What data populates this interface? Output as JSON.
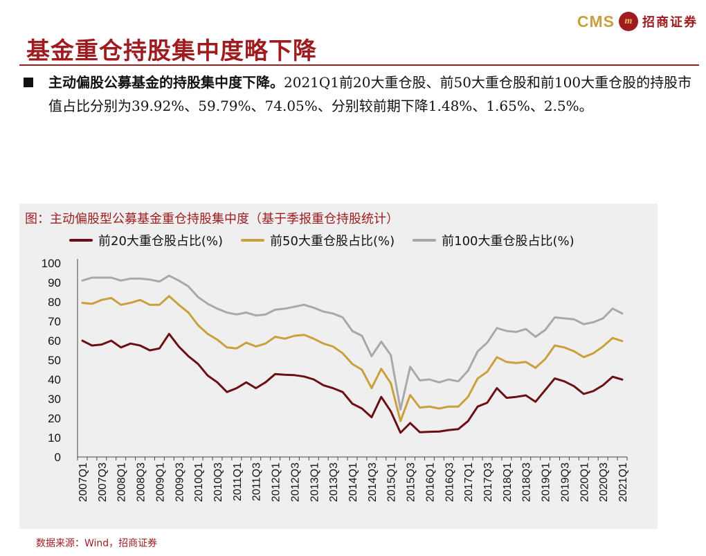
{
  "brand": {
    "cms": "CMS",
    "mark": "m",
    "name_cn": "招商证券"
  },
  "title": "基金重仓持股集中度略下降",
  "bullet": {
    "lead": "主动偏股公募基金的持股集中度下降。",
    "body": "2021Q1前20大重仓股、前50大重仓股和前100大重仓股的持股市值占比分别为39.92%、59.79%、74.05%、分别较前期下降1.48%、1.65%、2.5%。"
  },
  "figure_caption": "图：主动偏股型公募基金重仓持股集中度（基于季报重仓持股统计）",
  "source": "数据来源：Wind，招商证券",
  "colors": {
    "brand_red": "#9e1b1f",
    "gold": "#c9a040",
    "top20": "#6b0f14",
    "top50": "#c9a03c",
    "top100": "#a8a8a8"
  },
  "chart_data": {
    "type": "line",
    "title": "",
    "xlabel": "",
    "ylabel": "",
    "ylim": [
      0,
      100
    ],
    "yticks": [
      0,
      10,
      20,
      30,
      40,
      50,
      60,
      70,
      80,
      90,
      100
    ],
    "x": [
      "2007Q1",
      "2007Q2",
      "2007Q3",
      "2007Q4",
      "2008Q1",
      "2008Q2",
      "2008Q3",
      "2008Q4",
      "2009Q1",
      "2009Q2",
      "2009Q3",
      "2009Q4",
      "2010Q1",
      "2010Q2",
      "2010Q3",
      "2010Q4",
      "2011Q1",
      "2011Q2",
      "2011Q3",
      "2011Q4",
      "2012Q1",
      "2012Q2",
      "2012Q3",
      "2012Q4",
      "2013Q1",
      "2013Q2",
      "2013Q3",
      "2013Q4",
      "2014Q1",
      "2014Q2",
      "2014Q3",
      "2014Q4",
      "2015Q1",
      "2015Q2",
      "2015Q3",
      "2015Q4",
      "2016Q1",
      "2016Q2",
      "2016Q3",
      "2016Q4",
      "2017Q1",
      "2017Q2",
      "2017Q3",
      "2017Q4",
      "2018Q1",
      "2018Q2",
      "2018Q3",
      "2018Q4",
      "2019Q1",
      "2019Q2",
      "2019Q3",
      "2019Q4",
      "2020Q1",
      "2020Q2",
      "2020Q3",
      "2020Q4",
      "2021Q1"
    ],
    "x_tick_labels": [
      "2007Q1",
      "2007Q3",
      "2008Q1",
      "2008Q3",
      "2009Q1",
      "2009Q3",
      "2010Q1",
      "2010Q3",
      "2011Q1",
      "2011Q3",
      "2012Q1",
      "2012Q3",
      "2013Q1",
      "2013Q3",
      "2014Q1",
      "2014Q3",
      "2015Q1",
      "2015Q3",
      "2016Q1",
      "2016Q3",
      "2017Q1",
      "2017Q3",
      "2018Q1",
      "2018Q3",
      "2019Q1",
      "2019Q3",
      "2020Q1",
      "2020Q3",
      "2021Q1"
    ],
    "legend_position": "top",
    "grid": false,
    "series": [
      {
        "name": "前20大重仓股占比(%)",
        "color": "#6b0f14",
        "values": [
          60.0,
          57.5,
          58.0,
          60.0,
          56.5,
          58.5,
          57.5,
          55.0,
          56.0,
          63.5,
          57.0,
          52.0,
          48.0,
          42.0,
          38.5,
          33.5,
          35.5,
          38.5,
          35.5,
          38.5,
          42.8,
          42.4,
          42.2,
          41.5,
          40.0,
          37.0,
          35.5,
          33.5,
          27.5,
          25.0,
          20.5,
          31.0,
          23.5,
          12.5,
          17.5,
          12.8,
          13.0,
          13.1,
          13.9,
          14.4,
          18.5,
          26.0,
          28.0,
          35.5,
          30.5,
          31.0,
          31.8,
          28.5,
          34.5,
          40.5,
          39.0,
          36.5,
          32.5,
          34.0,
          37.0,
          41.4,
          39.92
        ]
      },
      {
        "name": "前50大重仓股占比(%)",
        "color": "#c9a03c",
        "values": [
          79.5,
          79.0,
          81.0,
          82.0,
          78.5,
          79.5,
          81.0,
          78.5,
          78.5,
          83.0,
          78.5,
          74.5,
          68.0,
          63.5,
          60.5,
          56.5,
          56.0,
          59.0,
          57.0,
          58.5,
          62.0,
          61.0,
          62.5,
          63.0,
          61.0,
          58.5,
          57.0,
          53.5,
          48.0,
          45.0,
          35.5,
          45.5,
          38.0,
          18.5,
          32.0,
          25.5,
          26.0,
          25.0,
          26.0,
          26.0,
          31.0,
          40.5,
          44.0,
          51.5,
          49.0,
          48.5,
          49.0,
          46.0,
          50.5,
          57.5,
          56.5,
          54.5,
          51.5,
          53.5,
          57.0,
          61.4,
          59.79
        ]
      },
      {
        "name": "前100大重仓股占比(%)",
        "color": "#a8a8a8",
        "values": [
          91.0,
          92.5,
          92.5,
          92.5,
          91.0,
          92.0,
          92.0,
          91.5,
          90.5,
          93.5,
          91.0,
          88.0,
          82.5,
          79.0,
          76.5,
          74.5,
          73.5,
          74.5,
          73.0,
          73.5,
          76.0,
          76.5,
          77.5,
          78.5,
          77.0,
          75.0,
          74.0,
          72.0,
          65.0,
          62.5,
          52.0,
          59.5,
          52.5,
          24.5,
          46.5,
          39.5,
          40.0,
          38.5,
          40.0,
          39.0,
          44.5,
          54.5,
          59.0,
          66.5,
          65.0,
          64.5,
          66.0,
          62.0,
          65.5,
          72.0,
          71.5,
          71.0,
          68.5,
          69.5,
          71.5,
          76.55,
          74.05
        ]
      }
    ]
  }
}
